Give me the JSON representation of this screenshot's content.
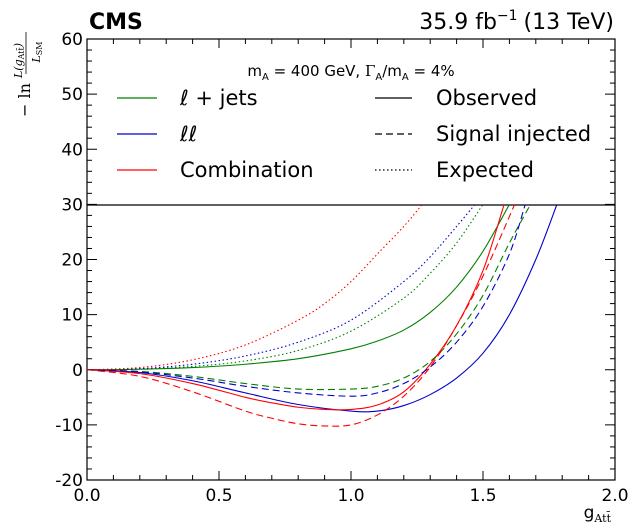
{
  "header": {
    "experiment": "CMS",
    "lumi_value": "35.9 fb",
    "lumi_exp": "−1",
    "lumi_energy": "(13 TeV)"
  },
  "annotation": "m_A = 400 GeV, Γ_A/m_A = 4%",
  "chart_data": {
    "type": "line",
    "xlabel": "g_Att̄",
    "ylabel": "−ln L(g_Att̄)/L_SM",
    "xlim": [
      0.0,
      2.0
    ],
    "ylim": [
      -20,
      60
    ],
    "x_ticks": [
      "0.0",
      "0.5",
      "1.0",
      "1.5",
      "2.0"
    ],
    "y_ticks": [
      "-20",
      "-10",
      "0",
      "10",
      "20",
      "30",
      "40",
      "50",
      "60"
    ],
    "legend_panel_y_range": [
      30,
      60
    ],
    "legend": [
      {
        "label": "ℓ + jets",
        "color": "#008000",
        "style": "solid"
      },
      {
        "label": "ℓℓ",
        "color": "#0000cc",
        "style": "solid"
      },
      {
        "label": "Combination",
        "color": "#ff0000",
        "style": "solid"
      },
      {
        "label": "Observed",
        "color": "#000000",
        "style": "solid"
      },
      {
        "label": "Signal injected",
        "color": "#000000",
        "style": "dashed"
      },
      {
        "label": "Expected",
        "color": "#000000",
        "style": "dotted"
      }
    ],
    "series": [
      {
        "channel": "ℓ + jets",
        "type": "Observed",
        "color": "#008000",
        "style": "solid",
        "x": [
          0,
          0.2,
          0.4,
          0.6,
          0.8,
          1.0,
          1.1,
          1.2,
          1.3,
          1.4,
          1.5,
          1.6
        ],
        "y": [
          0,
          0.1,
          0.4,
          1.0,
          2.0,
          3.8,
          5.2,
          7.2,
          10.4,
          15.0,
          21.5,
          30
        ]
      },
      {
        "channel": "ℓℓ",
        "type": "Observed",
        "color": "#0000cc",
        "style": "solid",
        "x": [
          0,
          0.2,
          0.4,
          0.6,
          0.8,
          1.0,
          1.1,
          1.2,
          1.3,
          1.4,
          1.5,
          1.6,
          1.7,
          1.78
        ],
        "y": [
          0,
          -0.5,
          -2.0,
          -4.2,
          -6.3,
          -7.5,
          -7.5,
          -6.5,
          -4.5,
          -1.5,
          3.0,
          10.0,
          20.0,
          30
        ]
      },
      {
        "channel": "Combination",
        "type": "Observed",
        "color": "#ff0000",
        "style": "solid",
        "x": [
          0,
          0.2,
          0.4,
          0.6,
          0.7,
          0.8,
          0.9,
          1.0,
          1.1,
          1.2,
          1.3,
          1.4,
          1.5,
          1.58
        ],
        "y": [
          0,
          -0.7,
          -2.5,
          -5.0,
          -6.0,
          -6.8,
          -7.2,
          -7.2,
          -6.4,
          -4.0,
          1.0,
          8.0,
          18.0,
          30
        ]
      },
      {
        "channel": "ℓ + jets",
        "type": "Signal injected",
        "color": "#008000",
        "style": "dashed",
        "x": [
          0,
          0.2,
          0.4,
          0.6,
          0.8,
          1.0,
          1.1,
          1.2,
          1.3,
          1.4,
          1.5,
          1.6,
          1.68
        ],
        "y": [
          0,
          -0.3,
          -1.2,
          -2.5,
          -3.5,
          -3.5,
          -3.0,
          -1.5,
          1.5,
          6.5,
          13.5,
          23.0,
          30
        ]
      },
      {
        "channel": "ℓℓ",
        "type": "Signal injected",
        "color": "#0000cc",
        "style": "dashed",
        "x": [
          0,
          0.2,
          0.4,
          0.6,
          0.8,
          1.0,
          1.1,
          1.2,
          1.3,
          1.4,
          1.5,
          1.6,
          1.66
        ],
        "y": [
          0,
          -0.4,
          -1.5,
          -3.0,
          -4.2,
          -4.8,
          -4.2,
          -2.5,
          0.5,
          5.0,
          11.5,
          21.0,
          30
        ]
      },
      {
        "channel": "Combination",
        "type": "Signal injected",
        "color": "#ff0000",
        "style": "dashed",
        "x": [
          0,
          0.2,
          0.4,
          0.6,
          0.7,
          0.8,
          0.9,
          1.0,
          1.1,
          1.2,
          1.3,
          1.4,
          1.5,
          1.62
        ],
        "y": [
          0,
          -1.2,
          -4.0,
          -7.5,
          -8.8,
          -9.8,
          -10.2,
          -10.0,
          -8.2,
          -4.8,
          0.5,
          8.0,
          17.0,
          30
        ]
      },
      {
        "channel": "ℓ + jets",
        "type": "Expected",
        "color": "#008000",
        "style": "dotted",
        "x": [
          0,
          0.2,
          0.4,
          0.6,
          0.8,
          1.0,
          1.2,
          1.3,
          1.4,
          1.5
        ],
        "y": [
          0,
          0.15,
          0.6,
          1.6,
          3.5,
          7.0,
          13.0,
          17.5,
          23.0,
          30
        ]
      },
      {
        "channel": "ℓℓ",
        "type": "Expected",
        "color": "#0000cc",
        "style": "dotted",
        "x": [
          0,
          0.2,
          0.4,
          0.6,
          0.8,
          1.0,
          1.2,
          1.3,
          1.4,
          1.47
        ],
        "y": [
          0,
          0.2,
          1.0,
          2.5,
          5.0,
          9.0,
          16.0,
          20.5,
          26.0,
          30
        ]
      },
      {
        "channel": "Combination",
        "type": "Expected",
        "color": "#ff0000",
        "style": "dotted",
        "x": [
          0,
          0.2,
          0.4,
          0.6,
          0.8,
          0.9,
          1.0,
          1.1,
          1.2,
          1.27
        ],
        "y": [
          0,
          0.4,
          1.8,
          4.5,
          9.0,
          12.0,
          16.0,
          21.0,
          26.0,
          30
        ]
      }
    ]
  }
}
